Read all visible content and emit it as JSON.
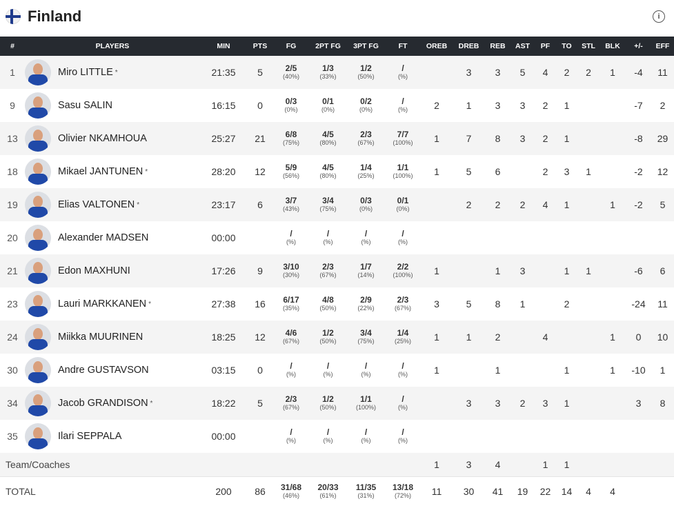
{
  "team": {
    "name": "Finland",
    "flag": "finland-flag",
    "info_icon": "i"
  },
  "columns": [
    "#",
    "PLAYERS",
    "MIN",
    "PTS",
    "FG",
    "2PT FG",
    "3PT FG",
    "FT",
    "OREB",
    "DREB",
    "REB",
    "AST",
    "PF",
    "TO",
    "STL",
    "BLK",
    "+/-",
    "EFF"
  ],
  "players": [
    {
      "num": "1",
      "name": "Miro LITTLE",
      "starter": "*",
      "min": "21:35",
      "pts": "5",
      "fg": "2/5",
      "fg_pct": "(40%)",
      "fg2": "1/3",
      "fg2_pct": "(33%)",
      "fg3": "1/2",
      "fg3_pct": "(50%)",
      "ft": "/",
      "ft_pct": "(%)",
      "oreb": "",
      "dreb": "3",
      "reb": "3",
      "ast": "5",
      "pf": "4",
      "to": "2",
      "stl": "2",
      "blk": "1",
      "pm": "-4",
      "eff": "11"
    },
    {
      "num": "9",
      "name": "Sasu SALIN",
      "starter": "",
      "min": "16:15",
      "pts": "0",
      "fg": "0/3",
      "fg_pct": "(0%)",
      "fg2": "0/1",
      "fg2_pct": "(0%)",
      "fg3": "0/2",
      "fg3_pct": "(0%)",
      "ft": "/",
      "ft_pct": "(%)",
      "oreb": "2",
      "dreb": "1",
      "reb": "3",
      "ast": "3",
      "pf": "2",
      "to": "1",
      "stl": "",
      "blk": "",
      "pm": "-7",
      "eff": "2"
    },
    {
      "num": "13",
      "name": "Olivier NKAMHOUA",
      "starter": "",
      "min": "25:27",
      "pts": "21",
      "fg": "6/8",
      "fg_pct": "(75%)",
      "fg2": "4/5",
      "fg2_pct": "(80%)",
      "fg3": "2/3",
      "fg3_pct": "(67%)",
      "ft": "7/7",
      "ft_pct": "(100%)",
      "oreb": "1",
      "dreb": "7",
      "reb": "8",
      "ast": "3",
      "pf": "2",
      "to": "1",
      "stl": "",
      "blk": "",
      "pm": "-8",
      "eff": "29"
    },
    {
      "num": "18",
      "name": "Mikael JANTUNEN",
      "starter": "*",
      "min": "28:20",
      "pts": "12",
      "fg": "5/9",
      "fg_pct": "(56%)",
      "fg2": "4/5",
      "fg2_pct": "(80%)",
      "fg3": "1/4",
      "fg3_pct": "(25%)",
      "ft": "1/1",
      "ft_pct": "(100%)",
      "oreb": "1",
      "dreb": "5",
      "reb": "6",
      "ast": "",
      "pf": "2",
      "to": "3",
      "stl": "1",
      "blk": "",
      "pm": "-2",
      "eff": "12"
    },
    {
      "num": "19",
      "name": "Elias VALTONEN",
      "starter": "*",
      "min": "23:17",
      "pts": "6",
      "fg": "3/7",
      "fg_pct": "(43%)",
      "fg2": "3/4",
      "fg2_pct": "(75%)",
      "fg3": "0/3",
      "fg3_pct": "(0%)",
      "ft": "0/1",
      "ft_pct": "(0%)",
      "oreb": "",
      "dreb": "2",
      "reb": "2",
      "ast": "2",
      "pf": "4",
      "to": "1",
      "stl": "",
      "blk": "1",
      "pm": "-2",
      "eff": "5"
    },
    {
      "num": "20",
      "name": "Alexander MADSEN",
      "starter": "",
      "min": "00:00",
      "pts": "",
      "fg": "/",
      "fg_pct": "(%)",
      "fg2": "/",
      "fg2_pct": "(%)",
      "fg3": "/",
      "fg3_pct": "(%)",
      "ft": "/",
      "ft_pct": "(%)",
      "oreb": "",
      "dreb": "",
      "reb": "",
      "ast": "",
      "pf": "",
      "to": "",
      "stl": "",
      "blk": "",
      "pm": "",
      "eff": ""
    },
    {
      "num": "21",
      "name": "Edon MAXHUNI",
      "starter": "",
      "min": "17:26",
      "pts": "9",
      "fg": "3/10",
      "fg_pct": "(30%)",
      "fg2": "2/3",
      "fg2_pct": "(67%)",
      "fg3": "1/7",
      "fg3_pct": "(14%)",
      "ft": "2/2",
      "ft_pct": "(100%)",
      "oreb": "1",
      "dreb": "",
      "reb": "1",
      "ast": "3",
      "pf": "",
      "to": "1",
      "stl": "1",
      "blk": "",
      "pm": "-6",
      "eff": "6"
    },
    {
      "num": "23",
      "name": "Lauri MARKKANEN",
      "starter": "*",
      "min": "27:38",
      "pts": "16",
      "fg": "6/17",
      "fg_pct": "(35%)",
      "fg2": "4/8",
      "fg2_pct": "(50%)",
      "fg3": "2/9",
      "fg3_pct": "(22%)",
      "ft": "2/3",
      "ft_pct": "(67%)",
      "oreb": "3",
      "dreb": "5",
      "reb": "8",
      "ast": "1",
      "pf": "",
      "to": "2",
      "stl": "",
      "blk": "",
      "pm": "-24",
      "eff": "11"
    },
    {
      "num": "24",
      "name": "Miikka MUURINEN",
      "starter": "",
      "min": "18:25",
      "pts": "12",
      "fg": "4/6",
      "fg_pct": "(67%)",
      "fg2": "1/2",
      "fg2_pct": "(50%)",
      "fg3": "3/4",
      "fg3_pct": "(75%)",
      "ft": "1/4",
      "ft_pct": "(25%)",
      "oreb": "1",
      "dreb": "1",
      "reb": "2",
      "ast": "",
      "pf": "4",
      "to": "",
      "stl": "",
      "blk": "1",
      "pm": "0",
      "eff": "10"
    },
    {
      "num": "30",
      "name": "Andre GUSTAVSON",
      "starter": "",
      "min": "03:15",
      "pts": "0",
      "fg": "/",
      "fg_pct": "(%)",
      "fg2": "/",
      "fg2_pct": "(%)",
      "fg3": "/",
      "fg3_pct": "(%)",
      "ft": "/",
      "ft_pct": "(%)",
      "oreb": "1",
      "dreb": "",
      "reb": "1",
      "ast": "",
      "pf": "",
      "to": "1",
      "stl": "",
      "blk": "1",
      "pm": "-10",
      "eff": "1"
    },
    {
      "num": "34",
      "name": "Jacob GRANDISON",
      "starter": "*",
      "min": "18:22",
      "pts": "5",
      "fg": "2/3",
      "fg_pct": "(67%)",
      "fg2": "1/2",
      "fg2_pct": "(50%)",
      "fg3": "1/1",
      "fg3_pct": "(100%)",
      "ft": "/",
      "ft_pct": "(%)",
      "oreb": "",
      "dreb": "3",
      "reb": "3",
      "ast": "2",
      "pf": "3",
      "to": "1",
      "stl": "",
      "blk": "",
      "pm": "3",
      "eff": "8"
    },
    {
      "num": "35",
      "name": "Ilari SEPPALA",
      "starter": "",
      "min": "00:00",
      "pts": "",
      "fg": "/",
      "fg_pct": "(%)",
      "fg2": "/",
      "fg2_pct": "(%)",
      "fg3": "/",
      "fg3_pct": "(%)",
      "ft": "/",
      "ft_pct": "(%)",
      "oreb": "",
      "dreb": "",
      "reb": "",
      "ast": "",
      "pf": "",
      "to": "",
      "stl": "",
      "blk": "",
      "pm": "",
      "eff": ""
    }
  ],
  "team_coaches": {
    "label": "Team/Coaches",
    "oreb": "1",
    "dreb": "3",
    "reb": "4",
    "ast": "",
    "pf": "1",
    "to": "1",
    "stl": "",
    "blk": "",
    "pm": "",
    "eff": ""
  },
  "total": {
    "label": "TOTAL",
    "min": "200",
    "pts": "86",
    "fg": "31/68",
    "fg_pct": "(46%)",
    "fg2": "20/33",
    "fg2_pct": "(61%)",
    "fg3": "11/35",
    "fg3_pct": "(31%)",
    "ft": "13/18",
    "ft_pct": "(72%)",
    "oreb": "11",
    "dreb": "30",
    "reb": "41",
    "ast": "19",
    "pf": "22",
    "to": "14",
    "stl": "4",
    "blk": "4",
    "pm": "",
    "eff": ""
  }
}
